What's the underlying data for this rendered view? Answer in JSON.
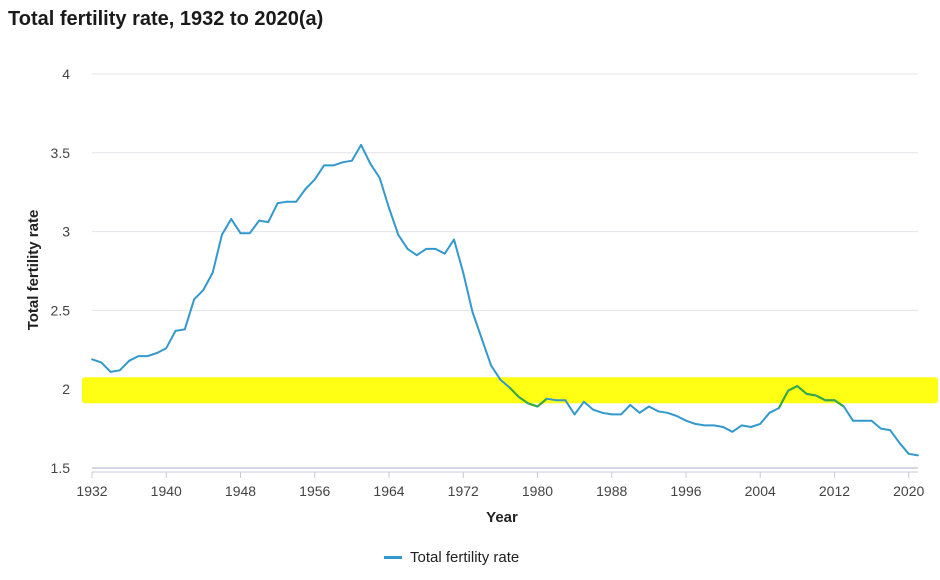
{
  "chart_data": {
    "type": "line",
    "title": "Total fertility rate, 1932 to 2020(a)",
    "xlabel": "Year",
    "ylabel": "Total fertility rate",
    "xlim": [
      1932,
      2021
    ],
    "ylim": [
      1.5,
      4
    ],
    "x_ticks": [
      "1932",
      "1940",
      "1948",
      "1956",
      "1964",
      "1972",
      "1980",
      "1988",
      "1996",
      "2004",
      "2012",
      "2020"
    ],
    "y_ticks": [
      "1.5",
      "2",
      "2.5",
      "3",
      "3.5",
      "4"
    ],
    "grid": true,
    "legend_position": "bottom-center",
    "colors": {
      "series": "#3399cc",
      "highlight_band": "#ffff00",
      "highlighted_segment": "#33aa33"
    },
    "highlight_band": {
      "y_value": 2.0
    },
    "series": [
      {
        "name": "Total fertility rate",
        "x": [
          1932,
          1933,
          1934,
          1935,
          1936,
          1937,
          1938,
          1939,
          1940,
          1941,
          1942,
          1943,
          1944,
          1945,
          1946,
          1947,
          1948,
          1949,
          1950,
          1951,
          1952,
          1953,
          1954,
          1955,
          1956,
          1957,
          1958,
          1959,
          1960,
          1961,
          1962,
          1963,
          1964,
          1965,
          1966,
          1967,
          1968,
          1969,
          1970,
          1971,
          1972,
          1973,
          1974,
          1975,
          1976,
          1977,
          1978,
          1979,
          1980,
          1981,
          1982,
          1983,
          1984,
          1985,
          1986,
          1987,
          1988,
          1989,
          1990,
          1991,
          1992,
          1993,
          1994,
          1995,
          1996,
          1997,
          1998,
          1999,
          2000,
          2001,
          2002,
          2003,
          2004,
          2005,
          2006,
          2007,
          2008,
          2009,
          2010,
          2011,
          2012,
          2013,
          2014,
          2015,
          2016,
          2017,
          2018,
          2019,
          2020,
          2021
        ],
        "values": [
          2.19,
          2.17,
          2.11,
          2.12,
          2.18,
          2.21,
          2.21,
          2.23,
          2.26,
          2.37,
          2.38,
          2.57,
          2.63,
          2.74,
          2.98,
          3.08,
          2.99,
          2.99,
          3.07,
          3.06,
          3.18,
          3.19,
          3.19,
          3.27,
          3.33,
          3.42,
          3.42,
          3.44,
          3.45,
          3.55,
          3.43,
          3.34,
          3.15,
          2.98,
          2.89,
          2.85,
          2.89,
          2.89,
          2.86,
          2.95,
          2.74,
          2.49,
          2.32,
          2.15,
          2.06,
          2.01,
          1.95,
          1.91,
          1.89,
          1.94,
          1.93,
          1.93,
          1.84,
          1.92,
          1.87,
          1.85,
          1.84,
          1.84,
          1.9,
          1.85,
          1.89,
          1.86,
          1.85,
          1.83,
          1.8,
          1.78,
          1.77,
          1.77,
          1.76,
          1.73,
          1.77,
          1.76,
          1.78,
          1.85,
          1.88,
          1.99,
          2.02,
          1.97,
          1.96,
          1.93,
          1.93,
          1.89,
          1.8,
          1.8,
          1.8,
          1.75,
          1.74,
          1.66,
          1.59,
          1.58
        ]
      }
    ],
    "highlighted_ranges": [
      [
        1977,
        1981
      ],
      [
        2006,
        2013
      ]
    ]
  }
}
